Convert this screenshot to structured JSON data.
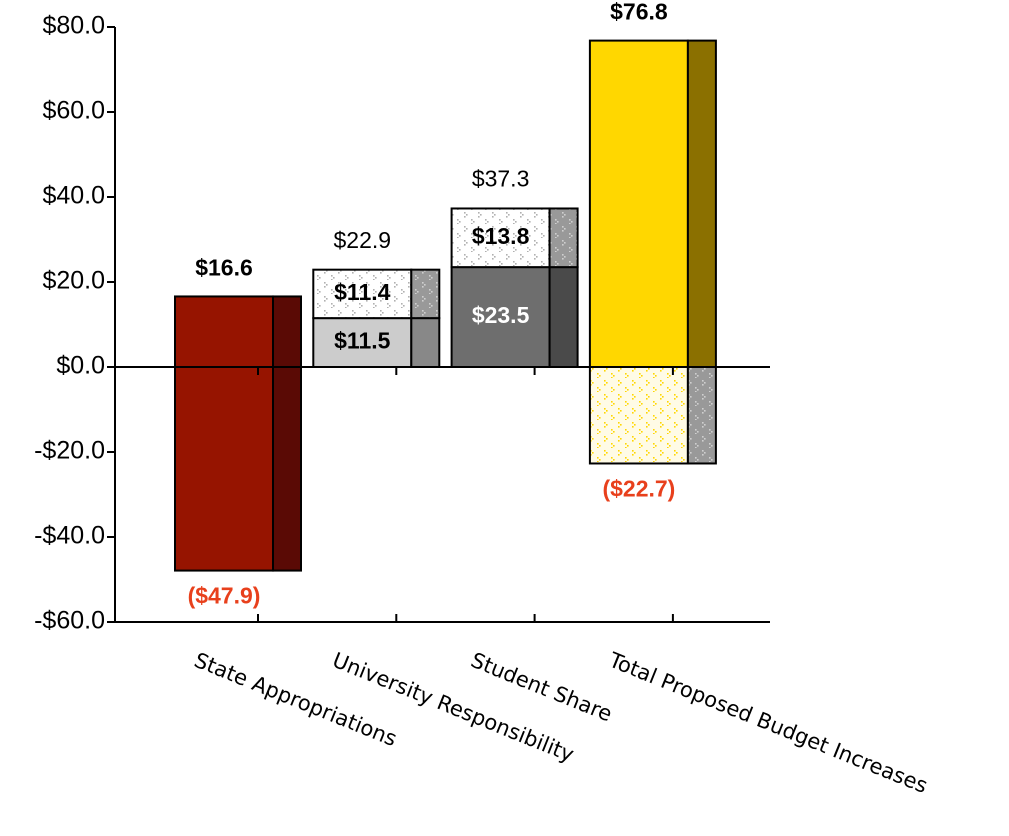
{
  "chart_data": {
    "type": "bar",
    "categories": [
      "State Appropriations",
      "University Responsibility",
      "Student Share",
      "Total Proposed Budget Increases"
    ],
    "ylim": [
      -60,
      80
    ],
    "yticks": [
      {
        "value": -60,
        "label": "-$60.0"
      },
      {
        "value": -40,
        "label": "-$40.0"
      },
      {
        "value": -20,
        "label": "-$20.0"
      },
      {
        "value": 0,
        "label": "$0.0"
      },
      {
        "value": 20,
        "label": "$20.0"
      },
      {
        "value": 40,
        "label": "$40.0"
      },
      {
        "value": 60,
        "label": "$60.0"
      },
      {
        "value": 80,
        "label": "$80.0"
      }
    ],
    "series": [
      {
        "values": [
          16.6,
          11.5,
          23.5,
          76.8
        ],
        "value_labels": [
          "$16.6",
          "$11.5",
          "$23.5",
          "$76.8"
        ],
        "colors": [
          "#961400",
          "#cccccc",
          "#6e6e6e",
          "#ffd700"
        ],
        "side_colors": [
          "#5a0a05",
          "#888888",
          "#4a4a4a",
          "#8b7000"
        ],
        "label_colors": [
          "#000000",
          "#000000",
          "#ffffff",
          "#000000"
        ]
      },
      {
        "values": [
          null,
          11.4,
          13.8,
          null
        ],
        "value_labels": [
          null,
          "$11.4",
          "$13.8",
          null
        ],
        "colors": [
          null,
          "#ffffff",
          "#ffffff",
          null
        ],
        "dot_colors": [
          null,
          "#b0b0b0",
          "#b0b0b0",
          null
        ],
        "side_colors": [
          null,
          "#999999",
          "#999999",
          null
        ],
        "label_colors": [
          null,
          "#000000",
          "#000000",
          null
        ]
      },
      {
        "values": [
          -47.9,
          null,
          null,
          -22.7
        ],
        "value_labels": [
          "($47.9)",
          null,
          null,
          "($22.7)"
        ],
        "colors": [
          "#961400",
          null,
          null,
          "#fffbe6"
        ],
        "dot_colors": [
          null,
          null,
          null,
          "#ffd700"
        ],
        "side_colors": [
          "#5a0a05",
          null,
          null,
          "#999999"
        ],
        "label_colors": [
          "#e8401c",
          null,
          null,
          "#e8401c"
        ]
      }
    ],
    "totals": [
      null,
      22.9,
      37.3,
      null
    ],
    "total_labels": [
      null,
      "$22.9",
      "$37.3",
      null
    ]
  }
}
